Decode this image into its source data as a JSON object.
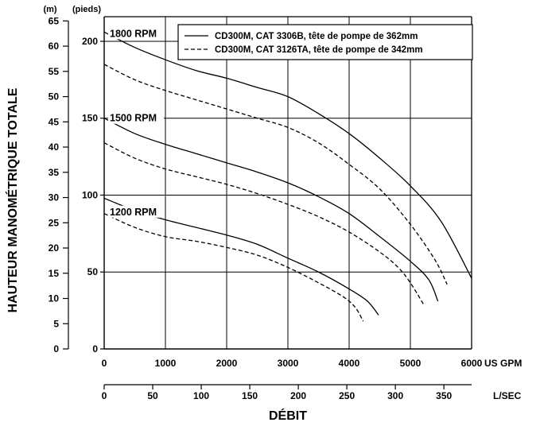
{
  "chart_data": {
    "type": "line",
    "x_unit_primary": "US GPM",
    "x_unit_secondary": "L/SEC",
    "y_unit_primary": "(pieds)",
    "y_unit_secondary": "(m)",
    "ylabel": "HAUTEUR MANOMÉTRIQUE TOTALE",
    "xlabel": "DÉBIT",
    "xlim": [
      0,
      6000
    ],
    "ylim_ft": [
      0,
      216
    ],
    "ylim_m": [
      0,
      65
    ],
    "grid": true,
    "x_ticks_gpm": [
      "0",
      "1000",
      "2000",
      "3000",
      "4000",
      "5000",
      "6000"
    ],
    "x_ticks_lsec": [
      "0",
      "50",
      "100",
      "150",
      "200",
      "250",
      "300",
      "350"
    ],
    "y_ticks_ft": [
      "0",
      "50",
      "100",
      "150",
      "200"
    ],
    "y_ticks_m": [
      "0",
      "5",
      "10",
      "15",
      "20",
      "25",
      "30",
      "35",
      "40",
      "45",
      "50",
      "55",
      "60",
      "65"
    ],
    "rpm_labels": [
      {
        "text": "1800 RPM",
        "x": 100,
        "y": 205
      },
      {
        "text": "1500 RPM",
        "x": 100,
        "y": 150
      },
      {
        "text": "1200 RPM",
        "x": 100,
        "y": 89
      }
    ],
    "legend_position": "top-right",
    "legend": [
      {
        "label": "CD300M, CAT 3306B, tête de pompe de 362mm",
        "style": "solid"
      },
      {
        "label": "CD300M, CAT 3126TA, tête de pompe de 342mm",
        "style": "dashed"
      }
    ],
    "series": [
      {
        "style": "solid",
        "rpm": "1800",
        "points": [
          [
            0,
            206
          ],
          [
            500,
            196
          ],
          [
            1000,
            188
          ],
          [
            1500,
            181
          ],
          [
            2000,
            176
          ],
          [
            2500,
            170
          ],
          [
            3000,
            164
          ],
          [
            3500,
            153
          ],
          [
            4000,
            140
          ],
          [
            4500,
            124
          ],
          [
            5000,
            106
          ],
          [
            5500,
            83
          ],
          [
            6000,
            46
          ]
        ]
      },
      {
        "style": "dashed",
        "rpm": "1800",
        "points": [
          [
            0,
            185
          ],
          [
            500,
            175
          ],
          [
            1000,
            168
          ],
          [
            1500,
            162
          ],
          [
            2000,
            156
          ],
          [
            2500,
            150
          ],
          [
            3000,
            144
          ],
          [
            3500,
            134
          ],
          [
            4000,
            120
          ],
          [
            4500,
            104
          ],
          [
            5000,
            81
          ],
          [
            5400,
            58
          ],
          [
            5600,
            42
          ]
        ]
      },
      {
        "style": "solid",
        "rpm": "1500",
        "points": [
          [
            0,
            150
          ],
          [
            500,
            140
          ],
          [
            1000,
            133
          ],
          [
            1500,
            127
          ],
          [
            2000,
            121
          ],
          [
            2500,
            115
          ],
          [
            3000,
            108
          ],
          [
            3500,
            99
          ],
          [
            4000,
            88
          ],
          [
            4500,
            73
          ],
          [
            5000,
            57
          ],
          [
            5300,
            45
          ],
          [
            5450,
            31
          ]
        ]
      },
      {
        "style": "dashed",
        "rpm": "1500",
        "points": [
          [
            0,
            134
          ],
          [
            500,
            124
          ],
          [
            1000,
            117
          ],
          [
            1500,
            112
          ],
          [
            2000,
            107
          ],
          [
            2500,
            101
          ],
          [
            3000,
            94
          ],
          [
            3500,
            86
          ],
          [
            4000,
            76
          ],
          [
            4500,
            63
          ],
          [
            4800,
            53
          ],
          [
            5000,
            43
          ],
          [
            5230,
            28
          ]
        ]
      },
      {
        "style": "solid",
        "rpm": "1200",
        "points": [
          [
            0,
            98
          ],
          [
            500,
            90
          ],
          [
            1000,
            84
          ],
          [
            1500,
            79
          ],
          [
            2000,
            74
          ],
          [
            2500,
            68
          ],
          [
            3000,
            59
          ],
          [
            3500,
            50
          ],
          [
            4000,
            39
          ],
          [
            4300,
            31
          ],
          [
            4480,
            22
          ]
        ]
      },
      {
        "style": "dashed",
        "rpm": "1200",
        "points": [
          [
            0,
            88
          ],
          [
            500,
            79
          ],
          [
            1000,
            73
          ],
          [
            1500,
            70
          ],
          [
            2000,
            66
          ],
          [
            2500,
            61
          ],
          [
            3000,
            53
          ],
          [
            3500,
            43
          ],
          [
            3900,
            34
          ],
          [
            4100,
            27
          ],
          [
            4230,
            18
          ]
        ]
      }
    ]
  }
}
